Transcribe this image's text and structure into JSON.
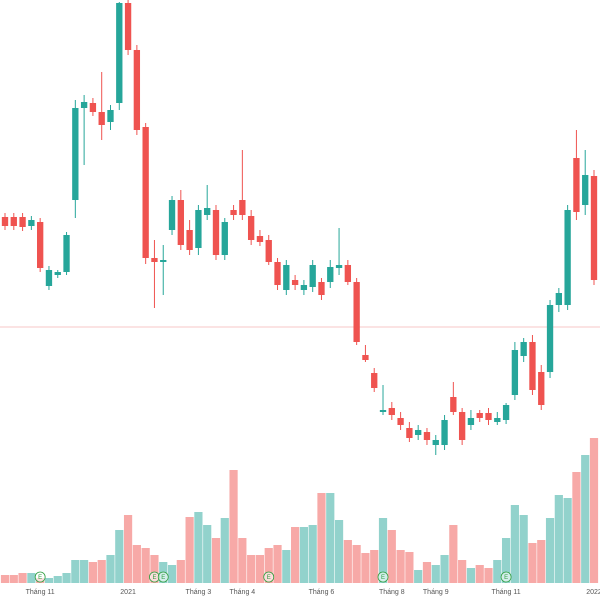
{
  "chart_data": {
    "type": "candlestick",
    "up_color": "#26a69a",
    "down_color": "#ef5350",
    "ylim": [
      0,
      600
    ],
    "vlim": [
      0,
      150
    ],
    "price_line": 273,
    "categories": [
      null,
      null,
      null,
      null,
      "Tháng 11",
      null,
      null,
      null,
      null,
      null,
      null,
      null,
      null,
      null,
      "2021",
      null,
      null,
      null,
      null,
      null,
      null,
      null,
      "Tháng 3",
      null,
      null,
      null,
      null,
      "Tháng 4",
      null,
      null,
      null,
      null,
      null,
      null,
      null,
      null,
      "Tháng 6",
      null,
      null,
      null,
      null,
      null,
      null,
      null,
      "Tháng 8",
      null,
      null,
      null,
      null,
      "Tháng 9",
      null,
      null,
      null,
      null,
      null,
      null,
      null,
      "Tháng 11",
      null,
      null,
      null,
      null,
      null,
      null,
      null,
      null,
      null,
      "2022"
    ],
    "open": [
      383,
      383,
      383,
      374,
      378,
      314,
      325,
      328,
      400,
      492,
      497,
      488,
      478,
      497,
      597,
      550,
      473,
      342,
      338,
      370,
      400,
      370,
      352,
      385,
      390,
      345,
      390,
      400,
      384,
      364,
      360,
      338,
      310,
      320,
      310,
      313,
      318,
      318,
      332,
      335,
      318,
      245,
      227,
      188,
      192,
      182,
      172,
      165,
      168,
      155,
      155,
      203,
      188,
      175,
      187,
      187,
      178,
      180,
      205,
      244,
      258,
      228,
      228,
      295,
      295,
      442,
      395,
      424
    ],
    "high": [
      387,
      387,
      387,
      384,
      382,
      334,
      330,
      368,
      500,
      505,
      502,
      528,
      495,
      598,
      600,
      555,
      477,
      360,
      355,
      404,
      410,
      380,
      395,
      415,
      395,
      382,
      395,
      450,
      390,
      370,
      365,
      342,
      340,
      325,
      320,
      340,
      322,
      340,
      372,
      340,
      322,
      255,
      232,
      215,
      198,
      188,
      178,
      175,
      172,
      165,
      185,
      218,
      192,
      190,
      190,
      192,
      188,
      197,
      258,
      262,
      265,
      235,
      300,
      312,
      395,
      470,
      450,
      430
    ],
    "low": [
      370,
      370,
      369,
      370,
      328,
      310,
      322,
      325,
      382,
      435,
      484,
      460,
      470,
      490,
      545,
      465,
      336,
      292,
      305,
      365,
      350,
      345,
      345,
      380,
      340,
      340,
      380,
      380,
      355,
      354,
      335,
      310,
      305,
      310,
      305,
      308,
      300,
      312,
      325,
      315,
      255,
      238,
      208,
      185,
      180,
      170,
      158,
      160,
      155,
      145,
      150,
      185,
      155,
      170,
      178,
      175,
      175,
      176,
      200,
      238,
      205,
      190,
      222,
      288,
      290,
      380,
      385,
      315
    ],
    "close": [
      374,
      374,
      373,
      380,
      332,
      330,
      328,
      365,
      492,
      498,
      488,
      475,
      490,
      597,
      550,
      470,
      342,
      338,
      340,
      400,
      355,
      350,
      390,
      392,
      345,
      378,
      385,
      385,
      360,
      358,
      338,
      315,
      335,
      315,
      315,
      335,
      305,
      333,
      335,
      318,
      258,
      240,
      212,
      190,
      185,
      175,
      162,
      170,
      160,
      160,
      180,
      188,
      160,
      182,
      182,
      180,
      182,
      195,
      250,
      258,
      210,
      195,
      295,
      307,
      390,
      388,
      425,
      320
    ],
    "volume": [
      8,
      8,
      10,
      10,
      5,
      5,
      7,
      10,
      23,
      23,
      21,
      23,
      28,
      53,
      68,
      38,
      35,
      28,
      21,
      18,
      23,
      66,
      71,
      58,
      45,
      65,
      113,
      45,
      28,
      28,
      35,
      38,
      33,
      56,
      56,
      58,
      90,
      90,
      63,
      43,
      38,
      30,
      33,
      65,
      53,
      33,
      31,
      13,
      21,
      18,
      28,
      58,
      23,
      15,
      18,
      15,
      23,
      45,
      78,
      68,
      40,
      43,
      65,
      88,
      85,
      111,
      128,
      145
    ],
    "event_labels": [
      null,
      null,
      null,
      null,
      "E",
      null,
      null,
      null,
      null,
      null,
      null,
      null,
      null,
      null,
      null,
      null,
      null,
      "E",
      "E",
      null,
      null,
      null,
      null,
      null,
      null,
      null,
      null,
      null,
      null,
      null,
      "E",
      null,
      null,
      null,
      null,
      null,
      null,
      null,
      null,
      null,
      null,
      null,
      null,
      "E",
      null,
      null,
      null,
      null,
      null,
      null,
      null,
      null,
      null,
      null,
      null,
      null,
      null,
      "E",
      null,
      null,
      null,
      null,
      null,
      null,
      null,
      null,
      null,
      null
    ]
  }
}
